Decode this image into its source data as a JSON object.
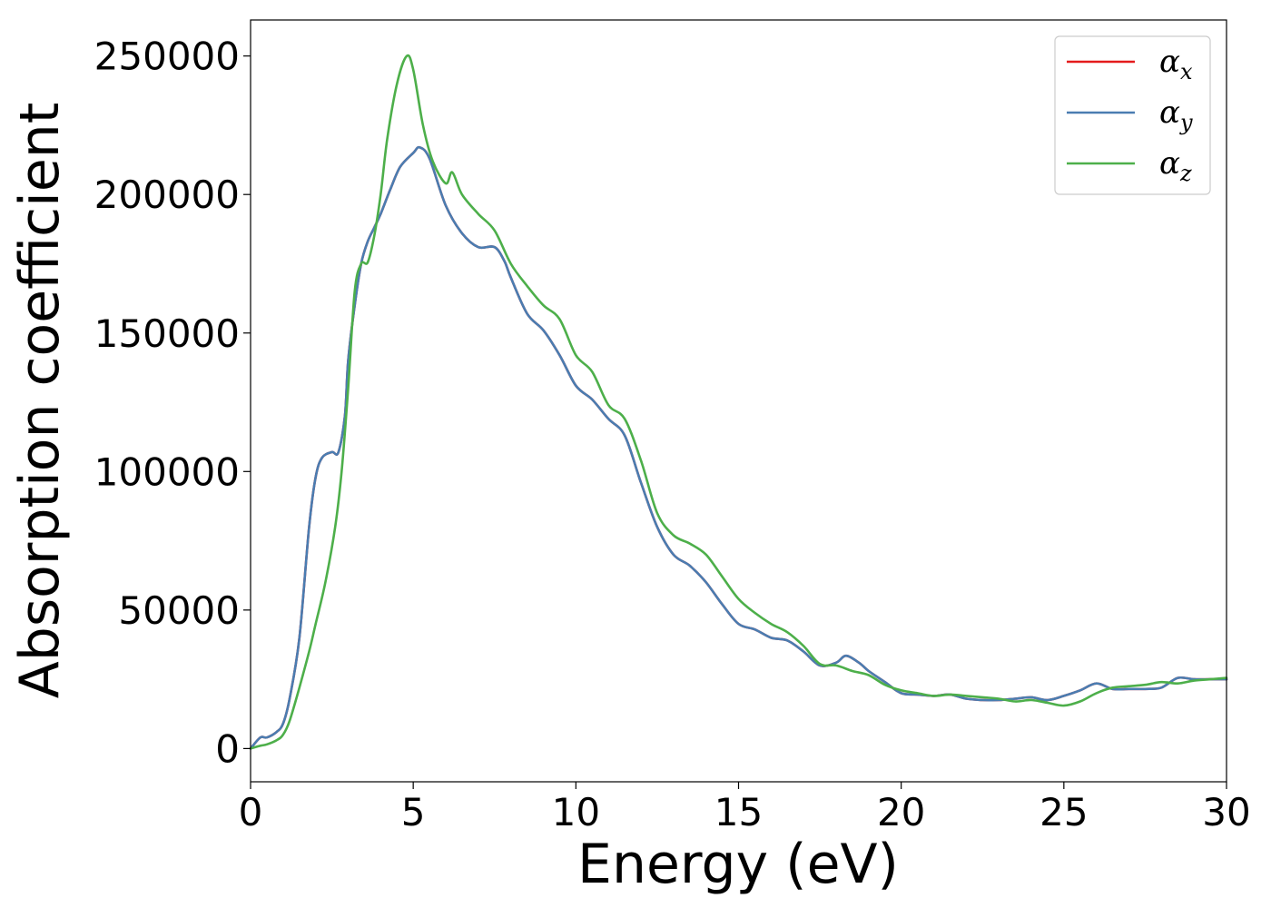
{
  "chart_data": {
    "type": "line",
    "title": "",
    "xlabel": "Energy (eV)",
    "ylabel": "Absorption coefficient",
    "xlim": [
      0,
      30
    ],
    "ylim": [
      -12000,
      263000
    ],
    "xticks": [
      0,
      5,
      10,
      15,
      20,
      25,
      30
    ],
    "xtick_labels": [
      "0",
      "5",
      "10",
      "15",
      "20",
      "25",
      "30"
    ],
    "yticks": [
      0,
      50000,
      100000,
      150000,
      200000,
      250000
    ],
    "ytick_labels": [
      "0",
      "50000",
      "100000",
      "150000",
      "200000",
      "250000"
    ],
    "grid": false,
    "legend_position": "top-right",
    "series": [
      {
        "name": "α",
        "subscript": "x",
        "color": "#e41a1c",
        "x": [
          0,
          0.3,
          0.5,
          0.8,
          1.0,
          1.2,
          1.5,
          1.8,
          2.0,
          2.2,
          2.5,
          2.7,
          2.9,
          3.0,
          3.2,
          3.4,
          3.6,
          3.8,
          4.0,
          4.3,
          4.6,
          5.0,
          5.2,
          5.5,
          6.0,
          6.5,
          7.0,
          7.5,
          7.8,
          8.0,
          8.5,
          9.0,
          9.5,
          10.0,
          10.5,
          11.0,
          11.5,
          12.0,
          12.5,
          13.0,
          13.5,
          14.0,
          14.5,
          15.0,
          15.5,
          16.0,
          16.5,
          17.0,
          17.5,
          18.0,
          18.3,
          18.7,
          19.0,
          19.5,
          20.0,
          20.5,
          21.0,
          21.5,
          22.0,
          22.5,
          23.0,
          23.5,
          24.0,
          24.5,
          25.0,
          25.5,
          26.0,
          26.5,
          27.0,
          27.5,
          28.0,
          28.5,
          29.0,
          29.5,
          30.0
        ],
        "values": [
          0,
          4000,
          4000,
          6000,
          9000,
          18000,
          40000,
          80000,
          98000,
          105000,
          107000,
          107000,
          120000,
          140000,
          160000,
          175000,
          183000,
          188000,
          193000,
          202000,
          210000,
          215000,
          217000,
          213000,
          196000,
          186000,
          181000,
          181000,
          176000,
          170000,
          157000,
          151000,
          142000,
          131000,
          126000,
          119000,
          113000,
          96000,
          80000,
          70000,
          66000,
          60000,
          52000,
          45000,
          43000,
          40000,
          39000,
          35000,
          30000,
          31000,
          33500,
          31000,
          28000,
          24000,
          20000,
          19500,
          19000,
          19500,
          18000,
          17500,
          17500,
          18000,
          18500,
          17500,
          19000,
          21000,
          23500,
          21500,
          21500,
          21500,
          22000,
          25500,
          25000,
          25000,
          25000
        ]
      },
      {
        "name": "α",
        "subscript": "y",
        "color": "#4a7db1",
        "x": [
          0,
          0.3,
          0.5,
          0.8,
          1.0,
          1.2,
          1.5,
          1.8,
          2.0,
          2.2,
          2.5,
          2.7,
          2.9,
          3.0,
          3.2,
          3.4,
          3.6,
          3.8,
          4.0,
          4.3,
          4.6,
          5.0,
          5.2,
          5.5,
          6.0,
          6.5,
          7.0,
          7.5,
          7.8,
          8.0,
          8.5,
          9.0,
          9.5,
          10.0,
          10.5,
          11.0,
          11.5,
          12.0,
          12.5,
          13.0,
          13.5,
          14.0,
          14.5,
          15.0,
          15.5,
          16.0,
          16.5,
          17.0,
          17.5,
          18.0,
          18.3,
          18.7,
          19.0,
          19.5,
          20.0,
          20.5,
          21.0,
          21.5,
          22.0,
          22.5,
          23.0,
          23.5,
          24.0,
          24.5,
          25.0,
          25.5,
          26.0,
          26.5,
          27.0,
          27.5,
          28.0,
          28.5,
          29.0,
          29.5,
          30.0
        ],
        "values": [
          0,
          4000,
          4000,
          6000,
          9000,
          18000,
          40000,
          80000,
          98000,
          105000,
          107000,
          107000,
          120000,
          140000,
          160000,
          175000,
          183000,
          188000,
          193000,
          202000,
          210000,
          215000,
          217000,
          213000,
          196000,
          186000,
          181000,
          181000,
          176000,
          170000,
          157000,
          151000,
          142000,
          131000,
          126000,
          119000,
          113000,
          96000,
          80000,
          70000,
          66000,
          60000,
          52000,
          45000,
          43000,
          40000,
          39000,
          35000,
          30000,
          31000,
          33500,
          31000,
          28000,
          24000,
          20000,
          19500,
          19000,
          19500,
          18000,
          17500,
          17500,
          18000,
          18500,
          17500,
          19000,
          21000,
          23500,
          21500,
          21500,
          21500,
          22000,
          25500,
          25000,
          25000,
          25000
        ]
      },
      {
        "name": "α",
        "subscript": "z",
        "color": "#4daf4a",
        "x": [
          0,
          0.3,
          0.5,
          0.8,
          1.0,
          1.2,
          1.5,
          1.8,
          2.0,
          2.3,
          2.6,
          2.8,
          3.0,
          3.2,
          3.4,
          3.6,
          3.8,
          4.0,
          4.2,
          4.5,
          4.8,
          5.0,
          5.3,
          5.6,
          6.0,
          6.2,
          6.5,
          7.0,
          7.5,
          8.0,
          8.5,
          9.0,
          9.5,
          10.0,
          10.5,
          11.0,
          11.5,
          12.0,
          12.5,
          13.0,
          13.5,
          14.0,
          14.5,
          15.0,
          15.5,
          16.0,
          16.5,
          17.0,
          17.5,
          18.0,
          18.5,
          19.0,
          19.5,
          20.0,
          20.5,
          21.0,
          21.5,
          22.0,
          22.5,
          23.0,
          23.5,
          24.0,
          24.5,
          25.0,
          25.5,
          26.0,
          26.5,
          27.0,
          27.5,
          28.0,
          28.5,
          29.0,
          29.5,
          30.0
        ],
        "values": [
          0,
          1000,
          1500,
          3000,
          5000,
          10000,
          22000,
          35000,
          45000,
          60000,
          80000,
          100000,
          130000,
          165000,
          175000,
          175500,
          185000,
          200000,
          220000,
          240000,
          250000,
          245000,
          225000,
          212000,
          204000,
          208000,
          200000,
          193000,
          187000,
          175000,
          167000,
          160000,
          155000,
          142000,
          136000,
          124000,
          119000,
          104000,
          85000,
          77000,
          74000,
          70000,
          62000,
          54000,
          49000,
          45000,
          42000,
          37000,
          30500,
          30000,
          28000,
          26500,
          23000,
          21000,
          20000,
          19000,
          19500,
          19000,
          18500,
          18000,
          17000,
          17500,
          16500,
          15500,
          17000,
          20000,
          22000,
          22500,
          23000,
          24000,
          23500,
          24500,
          25000,
          25500
        ]
      }
    ]
  }
}
